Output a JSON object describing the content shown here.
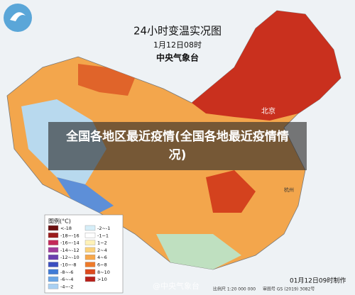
{
  "title": "24小时变温实况图",
  "subtitle": "1月12日08时",
  "source": "中央气象台",
  "caption": "全国各地区最近疫情(全国各地最近疫情情况)",
  "places": [
    "北京",
    "杭州"
  ],
  "legend": {
    "title": "图例(°C)",
    "items": [
      {
        "label": "<-18",
        "color": "#6b1010"
      },
      {
        "label": "-18~-16",
        "color": "#9b1c1c"
      },
      {
        "label": "-16~-14",
        "color": "#c42a5a"
      },
      {
        "label": "-14~-12",
        "color": "#a03c9c"
      },
      {
        "label": "-12~-10",
        "color": "#6a3fb0"
      },
      {
        "label": "-10~-8",
        "color": "#3b4fc0"
      },
      {
        "label": "-8~-6",
        "color": "#3f7bd6"
      },
      {
        "label": "-6~-4",
        "color": "#6aa6e6"
      },
      {
        "label": "-4~-2",
        "color": "#a9d0f2"
      },
      {
        "label": "-2~-1",
        "color": "#d6eef8"
      },
      {
        "label": "-1~1",
        "color": "#ffffff"
      },
      {
        "label": "1~2",
        "color": "#fff2b8"
      },
      {
        "label": "2~4",
        "color": "#fcd27a"
      },
      {
        "label": "4~6",
        "color": "#f7a74a"
      },
      {
        "label": "6~8",
        "color": "#ee7a2a"
      },
      {
        "label": "8~10",
        "color": "#dd4a1e"
      },
      {
        "label": ">10",
        "color": "#b8201a"
      }
    ]
  },
  "footer": {
    "made": "01月12日09时制作",
    "scale": "比例尺 1:20 000 000",
    "review": "审图号 GS (2019) 3082号"
  },
  "watermark": "@中央气象台"
}
